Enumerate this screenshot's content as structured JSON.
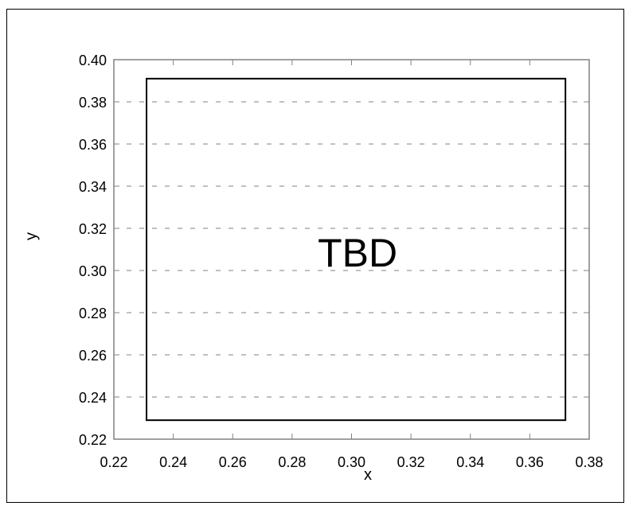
{
  "chart_data": {
    "type": "scatter",
    "title": "",
    "xlabel": "x",
    "ylabel": "y",
    "xlim": [
      0.22,
      0.38
    ],
    "ylim": [
      0.22,
      0.4
    ],
    "x_ticks": [
      "0.22",
      "0.24",
      "0.26",
      "0.28",
      "0.30",
      "0.32",
      "0.34",
      "0.36",
      "0.38"
    ],
    "y_ticks": [
      "0.22",
      "0.24",
      "0.26",
      "0.28",
      "0.30",
      "0.32",
      "0.34",
      "0.36",
      "0.38",
      "0.40"
    ],
    "grid": "dashed horizontal",
    "series": [],
    "annotation": {
      "text": "TBD",
      "box": {
        "x0": 0.231,
        "x1": 0.372,
        "y0": 0.229,
        "y1": 0.391
      }
    }
  },
  "colors": {
    "axis": "#808080",
    "grid": "#808080",
    "box": "#000000",
    "text": "#000000"
  }
}
